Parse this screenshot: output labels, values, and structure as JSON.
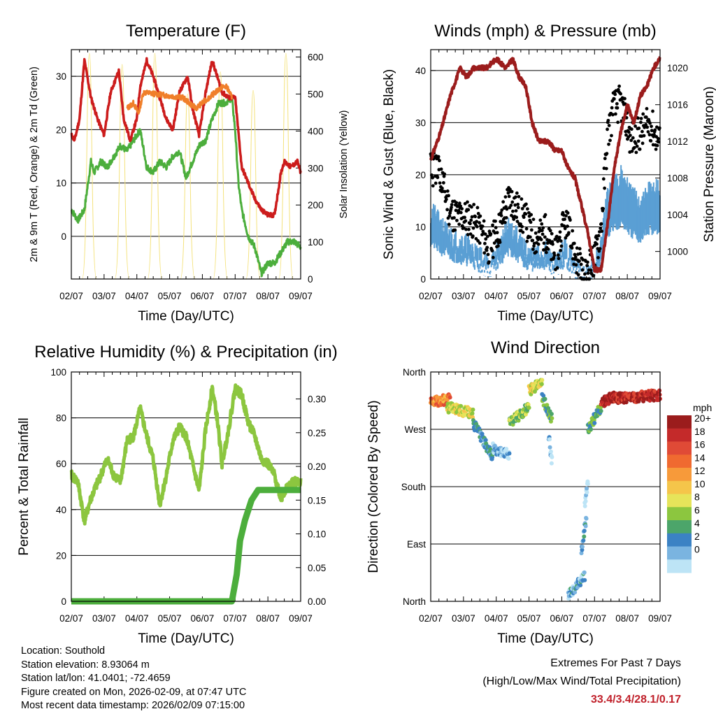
{
  "colors": {
    "t2m": "#cc1c1c",
    "t9m": "#f07f2a",
    "td": "#4cae3c",
    "solar": "#f4e27c",
    "wind": "#5a9fd4",
    "gust": "#000000",
    "pressure": "#9b1c1c",
    "rh": "#8cc63f",
    "precip": "#4cae3c",
    "extremes": "#c0202a"
  },
  "time_ticks": [
    "02/07",
    "03/07",
    "04/07",
    "05/07",
    "06/07",
    "07/07",
    "08/07",
    "09/07"
  ],
  "chart_data": [
    {
      "id": "temperature",
      "type": "line",
      "title": "Temperature (F)",
      "xlabel": "Time (Day/UTC)",
      "ylabel": "2m & 9m T (Red, Orange) & 2m Td (Green)",
      "ylabel_right": "Solar Insolation (Yellow)",
      "xlim": [
        0,
        7
      ],
      "ylim": [
        -8,
        35
      ],
      "ylim_right": [
        0,
        620
      ],
      "yticks": [
        0,
        10,
        20,
        30
      ],
      "yticks_right": [
        0,
        100,
        200,
        300,
        400,
        500,
        600
      ],
      "series": [
        {
          "name": "2m T",
          "color_key": "t2m",
          "axis": "left",
          "x": [
            0,
            0.1,
            0.25,
            0.4,
            0.6,
            0.8,
            1.0,
            1.2,
            1.45,
            1.6,
            1.8,
            2.0,
            2.1,
            2.3,
            2.5,
            2.7,
            2.9,
            3.1,
            3.3,
            3.55,
            3.7,
            3.9,
            4.1,
            4.3,
            4.45,
            4.6,
            4.8,
            5.0,
            5.2,
            5.4,
            5.6,
            5.8,
            6.0,
            6.2,
            6.4,
            6.5,
            6.7,
            6.9,
            7.0
          ],
          "y": [
            19,
            18,
            22,
            33,
            26,
            22,
            19,
            27,
            31,
            22,
            18,
            22,
            28,
            33,
            30,
            26,
            22,
            20,
            27,
            30,
            24,
            19,
            27,
            33,
            30,
            27,
            26,
            26,
            13,
            10,
            7,
            5,
            4,
            4,
            12,
            14,
            13,
            14,
            12
          ]
        },
        {
          "name": "9m T",
          "color_key": "t9m",
          "axis": "left",
          "x": [
            1.7,
            1.9,
            2.05,
            2.2,
            3.4,
            3.6,
            3.8,
            4.6,
            4.75,
            4.9
          ],
          "y": [
            24,
            25,
            23,
            27,
            26,
            25,
            24,
            28,
            28,
            26
          ]
        },
        {
          "name": "2m Td",
          "color_key": "td",
          "axis": "left",
          "x": [
            0,
            0.2,
            0.4,
            0.6,
            0.7,
            0.9,
            1.1,
            1.3,
            1.5,
            1.7,
            1.9,
            2.1,
            2.3,
            2.5,
            2.7,
            2.9,
            3.1,
            3.3,
            3.5,
            3.7,
            3.9,
            4.1,
            4.3,
            4.5,
            4.7,
            4.9,
            5.0,
            5.1,
            5.2,
            5.4,
            5.6,
            5.8,
            6.0,
            6.2,
            6.4,
            6.6,
            6.8,
            7.0
          ],
          "y": [
            5,
            3,
            5,
            14,
            12,
            14,
            13,
            15,
            17,
            16,
            18,
            20,
            13,
            12,
            14,
            13,
            15,
            16,
            11,
            14,
            17,
            18,
            22,
            25,
            25,
            26,
            20,
            10,
            5,
            0,
            -2,
            -7,
            -5,
            -5,
            -3,
            -1,
            -1,
            -2
          ]
        },
        {
          "name": "Solar Insolation",
          "color_key": "solar",
          "axis": "right",
          "peaks": [
            {
              "x": 0.55,
              "y": 610
            },
            {
              "x": 1.55,
              "y": 580
            },
            {
              "x": 2.55,
              "y": 610
            },
            {
              "x": 3.55,
              "y": 500
            },
            {
              "x": 4.55,
              "y": 560
            },
            {
              "x": 5.55,
              "y": 510
            },
            {
              "x": 6.55,
              "y": 610
            }
          ]
        }
      ]
    },
    {
      "id": "winds",
      "type": "line",
      "title": "Winds (mph) & Pressure (mb)",
      "xlabel": "Time (Day/UTC)",
      "ylabel": "Sonic Wind & Gust (Blue, Black)",
      "ylabel_right": "Station Pressure (Maroon)",
      "xlim": [
        0,
        7
      ],
      "ylim": [
        0,
        44
      ],
      "ylim_right": [
        997,
        1022
      ],
      "yticks": [
        0,
        10,
        20,
        30,
        40
      ],
      "yticks_right": [
        1000,
        1004,
        1008,
        1012,
        1016,
        1020
      ],
      "series": [
        {
          "name": "Sonic Wind",
          "color_key": "wind",
          "axis": "left",
          "x": [
            0,
            0.3,
            0.6,
            0.9,
            1.2,
            1.5,
            1.8,
            2.1,
            2.4,
            2.6,
            2.9,
            3.2,
            3.5,
            3.8,
            4.1,
            4.4,
            4.7,
            5.0,
            5.2,
            5.4,
            5.6,
            5.8,
            6.1,
            6.4,
            6.7,
            7.0
          ],
          "y": [
            13,
            10,
            8,
            7,
            6,
            4,
            2,
            6,
            10,
            8,
            5,
            4,
            5,
            2,
            6,
            2,
            0,
            2,
            6,
            16,
            18,
            20,
            16,
            14,
            17,
            17
          ]
        },
        {
          "name": "Gust",
          "color_key": "gust",
          "axis": "left",
          "x": [
            0,
            0.3,
            0.6,
            0.9,
            1.2,
            1.5,
            1.8,
            2.1,
            2.4,
            2.6,
            2.9,
            3.2,
            3.5,
            3.8,
            4.1,
            4.4,
            4.7,
            5.0,
            5.2,
            5.4,
            5.6,
            5.8,
            6.1,
            6.4,
            6.7,
            7.0
          ],
          "y": [
            21,
            20,
            13,
            12,
            12,
            10,
            6,
            10,
            16,
            14,
            11,
            8,
            9,
            4,
            11,
            5,
            0,
            4,
            10,
            28,
            33,
            34,
            27,
            28,
            30,
            26
          ]
        },
        {
          "name": "Station Pressure",
          "color_key": "pressure",
          "axis": "right",
          "x": [
            0,
            0.3,
            0.6,
            0.9,
            1.1,
            1.3,
            1.5,
            1.7,
            2.0,
            2.3,
            2.5,
            2.7,
            2.9,
            3.1,
            3.3,
            3.6,
            3.8,
            4.0,
            4.2,
            4.4,
            4.6,
            4.8,
            5.0,
            5.2,
            5.4,
            5.6,
            5.8,
            6.0,
            6.2,
            6.4,
            6.6,
            6.8,
            7.0
          ],
          "y": [
            1010,
            1013,
            1017,
            1020,
            1019,
            1020,
            1020,
            1020,
            1021,
            1020,
            1021,
            1019,
            1018,
            1014,
            1012,
            1012,
            1011,
            1011,
            1009,
            1008,
            1005,
            1002,
            998,
            998,
            1003,
            1009,
            1013,
            1016,
            1014,
            1017,
            1018,
            1020,
            1021
          ]
        }
      ]
    },
    {
      "id": "humidity",
      "type": "line",
      "title": "Relative Humidity (%) & Precipitation (in)",
      "xlabel": "Time (Day/UTC)",
      "ylabel": "Percent & Total Rainfall",
      "xlim": [
        0,
        7
      ],
      "ylim": [
        0,
        100
      ],
      "ylim_right": [
        0,
        0.34
      ],
      "yticks": [
        0,
        20,
        40,
        60,
        80,
        100
      ],
      "yticks_right": [
        "0.00",
        "0.05",
        "0.10",
        "0.15",
        "0.20",
        "0.25",
        "0.30"
      ],
      "series": [
        {
          "name": "Relative Humidity",
          "color_key": "rh",
          "axis": "left",
          "x": [
            0,
            0.2,
            0.4,
            0.6,
            0.9,
            1.1,
            1.3,
            1.5,
            1.7,
            1.9,
            2.1,
            2.3,
            2.5,
            2.7,
            2.9,
            3.1,
            3.3,
            3.5,
            3.7,
            3.9,
            4.1,
            4.3,
            4.45,
            4.6,
            4.8,
            5.0,
            5.2,
            5.4,
            5.6,
            5.8,
            6.0,
            6.2,
            6.4,
            6.6,
            6.8,
            7.0
          ],
          "y": [
            55,
            52,
            35,
            45,
            55,
            62,
            55,
            52,
            70,
            72,
            84,
            72,
            62,
            42,
            55,
            70,
            76,
            72,
            60,
            48,
            75,
            93,
            80,
            60,
            75,
            93,
            90,
            78,
            72,
            62,
            60,
            55,
            45,
            50,
            52,
            52
          ]
        },
        {
          "name": "Total Precipitation",
          "color_key": "precip",
          "axis": "right",
          "x": [
            0,
            4.9,
            5.05,
            5.15,
            5.3,
            5.5,
            5.7,
            6.0,
            7.0
          ],
          "y": [
            0,
            0,
            0.04,
            0.09,
            0.12,
            0.15,
            0.165,
            0.165,
            0.165
          ]
        }
      ]
    },
    {
      "id": "wind_direction",
      "type": "scatter",
      "title": "Wind Direction",
      "xlabel": "Time (Day/UTC)",
      "ylabel": "Direction (Colored By Speed)",
      "xlim": [
        0,
        7
      ],
      "ylim": [
        0,
        360
      ],
      "ytick_labels": [
        "North",
        "East",
        "South",
        "West",
        "North"
      ],
      "yticks": [
        0,
        90,
        180,
        270,
        360
      ],
      "colorbar_unit": "mph",
      "colorbar_labels": [
        "20+",
        "18",
        "16",
        "14",
        "12",
        "10",
        "8",
        "6",
        "4",
        "2",
        "0"
      ],
      "colorbar_colors": [
        "#9b1c1c",
        "#c42a2a",
        "#e04a36",
        "#f06a30",
        "#f79a3a",
        "#f5c54a",
        "#e6e45a",
        "#8cc63f",
        "#4ca56a",
        "#3b82c4",
        "#7ab4e0",
        "#bde4f6"
      ],
      "clusters": [
        {
          "t0": 0.0,
          "t1": 0.6,
          "d0": 312,
          "d1": 318,
          "speed": 16
        },
        {
          "t0": 0.5,
          "t1": 1.3,
          "d0": 305,
          "d1": 295,
          "speed": 11
        },
        {
          "t0": 1.3,
          "t1": 1.9,
          "d0": 280,
          "d1": 225,
          "speed": 5
        },
        {
          "t0": 1.9,
          "t1": 2.4,
          "d0": 240,
          "d1": 230,
          "speed": 3
        },
        {
          "t0": 2.4,
          "t1": 3.0,
          "d0": 280,
          "d1": 305,
          "speed": 9
        },
        {
          "t0": 3.0,
          "t1": 3.4,
          "d0": 330,
          "d1": 345,
          "speed": 11
        },
        {
          "t0": 3.4,
          "t1": 3.7,
          "d0": 320,
          "d1": 285,
          "speed": 7
        },
        {
          "t0": 3.6,
          "t1": 3.7,
          "d0": 260,
          "d1": 220,
          "speed": 2
        },
        {
          "t0": 4.2,
          "t1": 4.7,
          "d0": 10,
          "d1": 40,
          "speed": 4
        },
        {
          "t0": 4.6,
          "t1": 4.75,
          "d0": 80,
          "d1": 130,
          "speed": 5
        },
        {
          "t0": 4.7,
          "t1": 4.8,
          "d0": 150,
          "d1": 190,
          "speed": 1
        },
        {
          "t0": 4.8,
          "t1": 5.2,
          "d0": 270,
          "d1": 305,
          "speed": 7
        },
        {
          "t0": 5.2,
          "t1": 5.6,
          "d0": 312,
          "d1": 322,
          "speed": 22
        },
        {
          "t0": 5.6,
          "t1": 7.0,
          "d0": 318,
          "d1": 324,
          "speed": 21
        }
      ]
    }
  ],
  "info": {
    "location": "Location: Southold",
    "elevation": "Station elevation: 8.93064 m",
    "latlon": "Station lat/lon: 41.0401; -72.4659",
    "created": "Figure created on Mon, 2026-02-09, at 07:47 UTC",
    "recent": "Most recent data timestamp: 2026/02/09 07:15:00"
  },
  "extremes": {
    "title": "Extremes For Past 7 Days",
    "subtitle": "(High/Low/Max Wind/Total Precipitation)",
    "values": "33.4/3.4/28.1/0.17"
  }
}
